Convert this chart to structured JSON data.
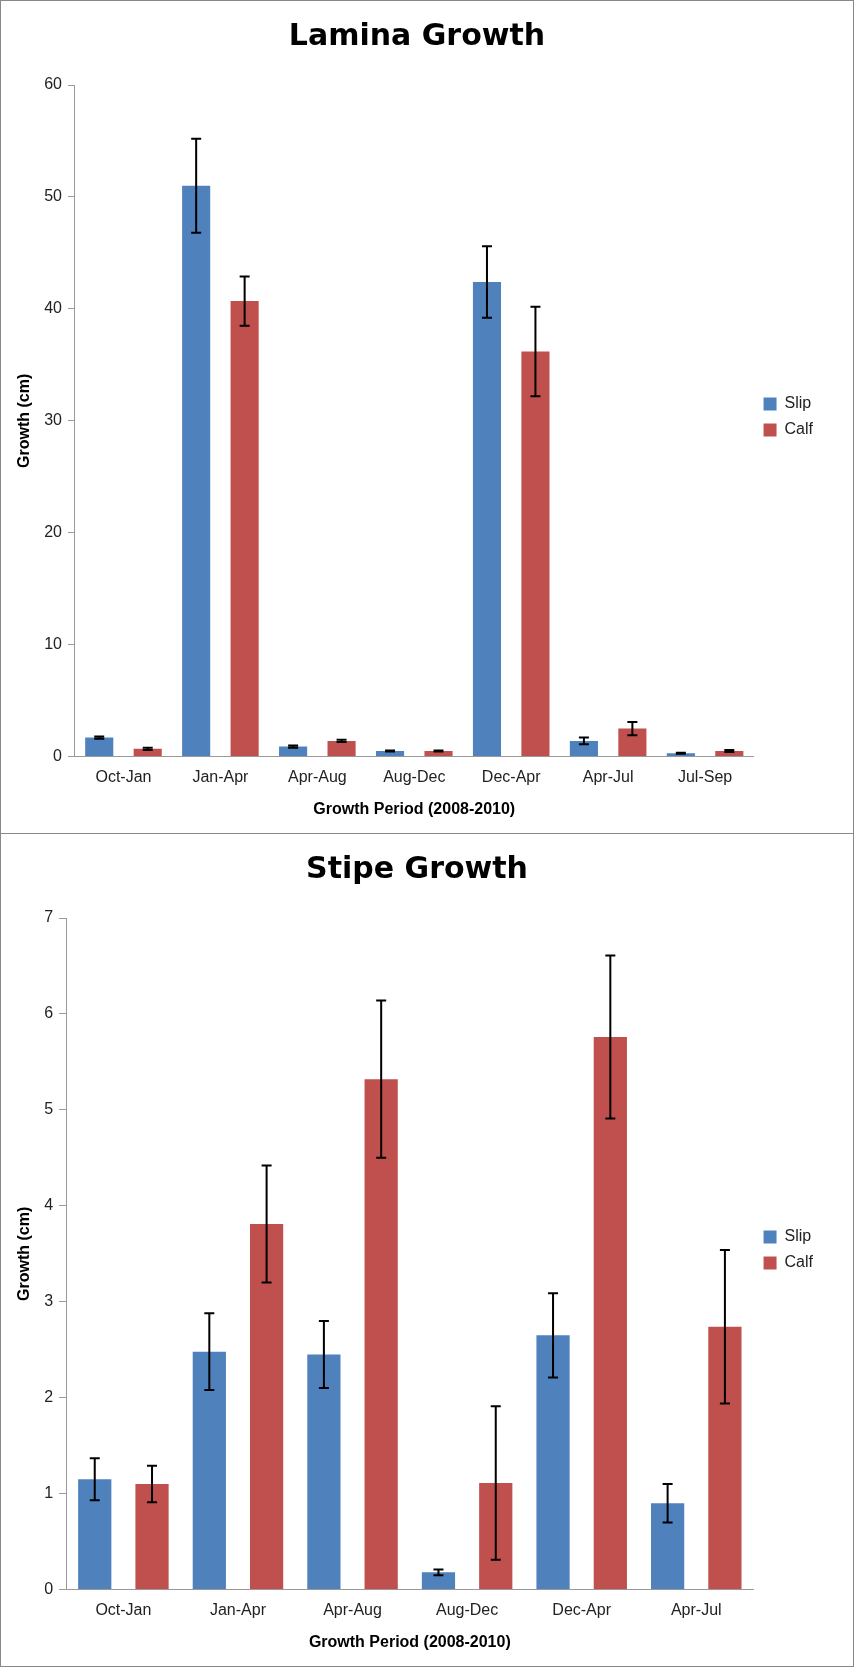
{
  "chart_data": [
    {
      "type": "bar",
      "title": "Lamina Growth",
      "xlabel": "Growth Period (2008-2010)",
      "ylabel": "Growth (cm)",
      "categories": [
        "Oct-Jan",
        "Jan-Apr",
        "Apr-Aug",
        "Aug-Dec",
        "Dec-Apr",
        "Apr-Jul",
        "Jul-Sep"
      ],
      "ylim": [
        0,
        60
      ],
      "yticks": [
        0,
        10,
        20,
        30,
        40,
        50,
        60
      ],
      "grid": false,
      "legend": "right",
      "series": [
        {
          "name": "Slip",
          "color": "#4f81bd",
          "values": [
            1.7,
            51.0,
            0.9,
            0.5,
            42.4,
            1.4,
            0.3
          ],
          "errors": [
            0.1,
            4.2,
            0.1,
            0.05,
            3.2,
            0.3,
            0.05
          ]
        },
        {
          "name": "Calf",
          "color": "#c0504d",
          "values": [
            0.7,
            40.7,
            1.4,
            0.5,
            36.2,
            2.5,
            0.5
          ],
          "errors": [
            0.1,
            2.2,
            0.1,
            0.05,
            4.0,
            0.6,
            0.1
          ]
        }
      ]
    },
    {
      "type": "bar",
      "title": "Stipe Growth",
      "xlabel": "Growth Period (2008-2010)",
      "ylabel": "Growth (cm)",
      "categories": [
        "Oct-Jan",
        "Jan-Apr",
        "Apr-Aug",
        "Aug-Dec",
        "Dec-Apr",
        "Apr-Jul"
      ],
      "ylim": [
        0,
        7
      ],
      "yticks": [
        0,
        1,
        2,
        3,
        4,
        5,
        6,
        7
      ],
      "grid": false,
      "legend": "right",
      "series": [
        {
          "name": "Slip",
          "color": "#4f81bd",
          "values": [
            1.15,
            2.48,
            2.45,
            0.18,
            2.65,
            0.9
          ],
          "errors": [
            0.22,
            0.4,
            0.35,
            0.03,
            0.44,
            0.2
          ]
        },
        {
          "name": "Calf",
          "color": "#c0504d",
          "values": [
            1.1,
            3.81,
            5.32,
            1.11,
            5.76,
            2.74
          ],
          "errors": [
            0.19,
            0.61,
            0.82,
            0.8,
            0.85,
            0.8
          ]
        }
      ]
    }
  ]
}
